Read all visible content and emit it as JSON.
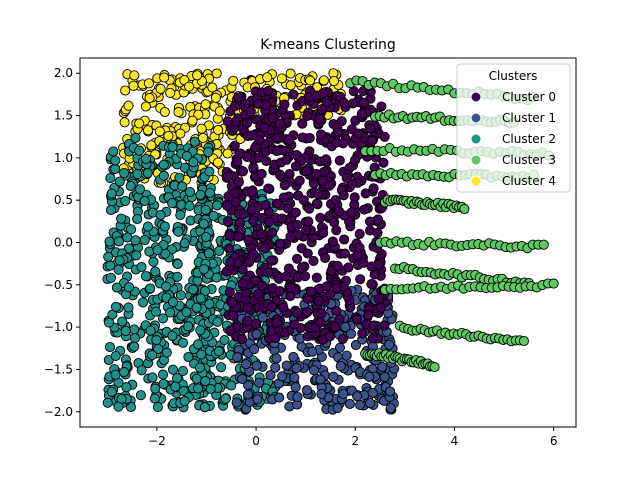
{
  "chart_data": {
    "type": "scatter",
    "title": "K-means Clustering",
    "xlabel": "",
    "ylabel": "",
    "xlim": [
      -3.55,
      6.45
    ],
    "ylim": [
      -2.18,
      2.18
    ],
    "xticks": [
      -2,
      0,
      2,
      4,
      6
    ],
    "yticks": [
      -2.0,
      -1.5,
      -1.0,
      -0.5,
      0.0,
      0.5,
      1.0,
      1.5,
      2.0
    ],
    "grid": false,
    "legend": {
      "title": "Clusters",
      "placement": "top-right",
      "entries": [
        "Cluster 0",
        "Cluster 1",
        "Cluster 2",
        "Cluster 3",
        "Cluster 4"
      ]
    },
    "series": [
      {
        "name": "Cluster 0",
        "color": "#440154",
        "regions": [
          {
            "x": [
              -0.6,
              2.6
            ],
            "y": [
              -1.15,
              1.8
            ]
          }
        ]
      },
      {
        "name": "Cluster 1",
        "color": "#3b528b",
        "regions": [
          {
            "x": [
              -0.4,
              2.8
            ],
            "y": [
              -1.98,
              -0.55
            ]
          }
        ]
      },
      {
        "name": "Cluster 2",
        "color": "#21918c",
        "regions": [
          {
            "x": [
              -3.0,
              -0.9
            ],
            "y": [
              -1.95,
              1.25
            ]
          },
          {
            "x": [
              -1.2,
              0.4
            ],
            "y": [
              -1.95,
              0.6
            ]
          }
        ]
      },
      {
        "name": "Cluster 3",
        "color": "#5ec962",
        "trails": [
          {
            "x0": 1.9,
            "y0": 1.9,
            "x1": 5.6,
            "y1": 1.7
          },
          {
            "x0": 2.4,
            "y0": 1.5,
            "x1": 5.2,
            "y1": 1.42
          },
          {
            "x0": 2.2,
            "y0": 1.1,
            "x1": 5.9,
            "y1": 1.05
          },
          {
            "x0": 2.4,
            "y0": 0.8,
            "x1": 5.6,
            "y1": 0.78
          },
          {
            "x0": 2.6,
            "y0": 0.5,
            "x1": 4.2,
            "y1": 0.42
          },
          {
            "x0": 2.5,
            "y0": 0.0,
            "x1": 5.8,
            "y1": -0.05
          },
          {
            "x0": 2.8,
            "y0": -0.3,
            "x1": 5.5,
            "y1": -0.48
          },
          {
            "x0": 2.6,
            "y0": -0.55,
            "x1": 6.0,
            "y1": -0.5
          },
          {
            "x0": 2.9,
            "y0": -1.0,
            "x1": 5.4,
            "y1": -1.18
          },
          {
            "x0": 2.2,
            "y0": -1.3,
            "x1": 3.6,
            "y1": -1.45
          }
        ]
      },
      {
        "name": "Cluster 4",
        "color": "#fde725",
        "regions": [
          {
            "x": [
              -2.7,
              -0.3
            ],
            "y": [
              0.7,
              2.0
            ]
          },
          {
            "x": [
              -0.4,
              1.8
            ],
            "y": [
              1.5,
              2.0
            ]
          }
        ]
      }
    ]
  }
}
